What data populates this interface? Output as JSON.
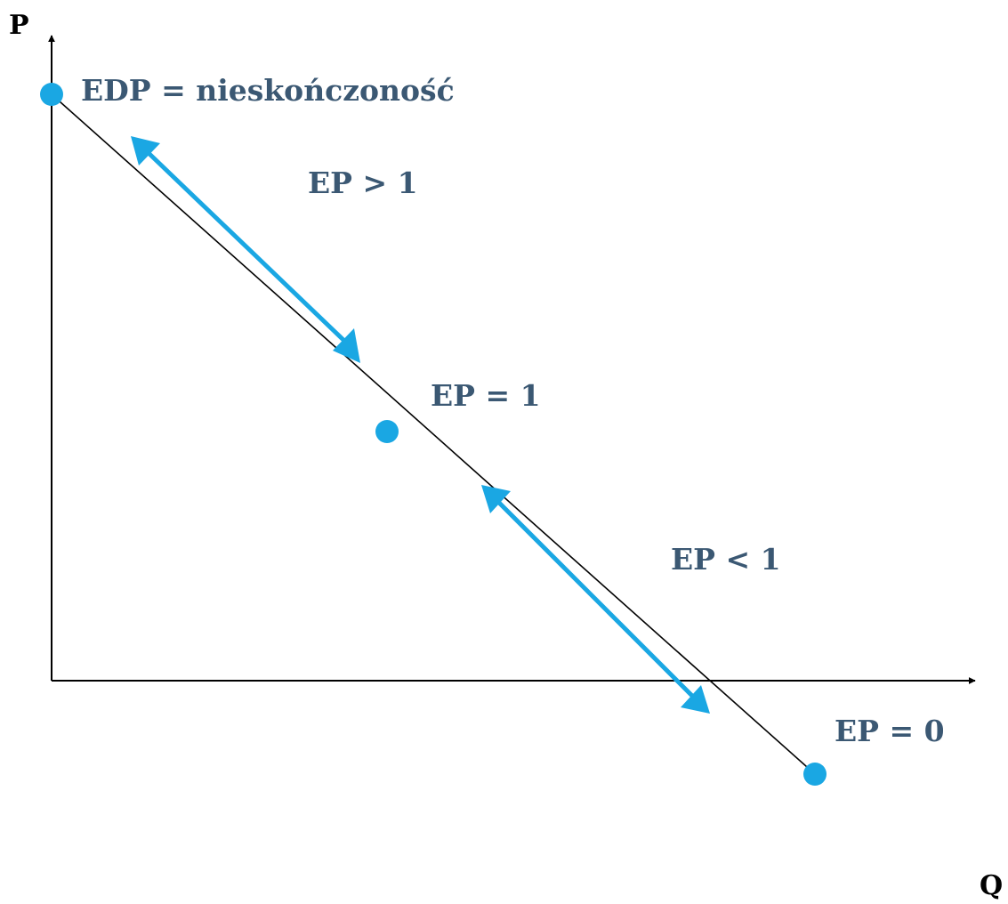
{
  "diagram": {
    "axis_labels": {
      "y": "P",
      "x": "Q"
    },
    "point_labels": {
      "top": "EDP = nieskończoność",
      "middle": "EP = 1",
      "bottom": "EP = 0"
    },
    "range_labels": {
      "upper": "EP > 1",
      "lower": "EP < 1"
    },
    "colors": {
      "accent": "#1aa7e3",
      "label": "#3b5873",
      "axis": "#000000"
    }
  }
}
